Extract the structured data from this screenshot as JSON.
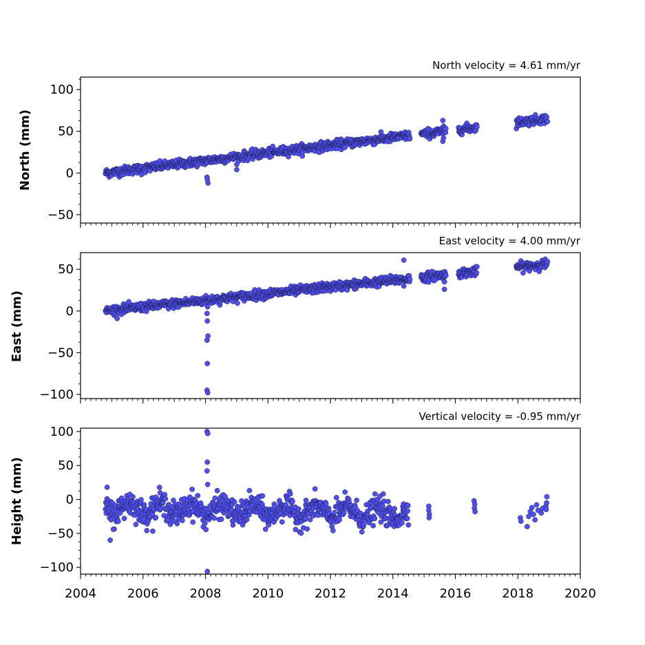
{
  "chart_data": [
    {
      "type": "scatter",
      "title": "North velocity = 4.61 mm/yr",
      "xlabel": "",
      "ylabel": "North (mm)",
      "xlim": [
        2004,
        2020
      ],
      "ylim": [
        -60,
        115
      ],
      "yticks": [
        -50,
        0,
        50,
        100
      ],
      "xticks": [
        2004,
        2006,
        2008,
        2010,
        2012,
        2014,
        2016,
        2018,
        2020
      ],
      "x_tick_labels_visible": false,
      "trend": {
        "slope_mm_per_yr": 4.61,
        "start_year": 2004.8,
        "start_value": 0
      },
      "gaps": [
        [
          2014.55,
          2014.9
        ],
        [
          2015.7,
          2016.1
        ],
        [
          2016.7,
          2017.95
        ]
      ],
      "end_year": 2018.95,
      "segment_offsets": [],
      "outliers": [
        {
          "x": 2008.05,
          "y": -5
        },
        {
          "x": 2008.08,
          "y": -12
        },
        {
          "x": 2008.06,
          "y": -8
        },
        {
          "x": 2009.0,
          "y": 4
        },
        {
          "x": 2005.95,
          "y": -2
        },
        {
          "x": 2015.6,
          "y": 63
        },
        {
          "x": 2015.6,
          "y": 38
        },
        {
          "x": 2015.62,
          "y": 42
        }
      ],
      "series": [
        {
          "values_description_only": false
        }
      ]
    },
    {
      "type": "scatter",
      "title": "East velocity = 4.00 mm/yr",
      "xlabel": "",
      "ylabel": "East (mm)",
      "xlim": [
        2004,
        2020
      ],
      "ylim": [
        -105,
        70
      ],
      "yticks": [
        -100,
        -50,
        0,
        50
      ],
      "xticks": [
        2004,
        2006,
        2008,
        2010,
        2012,
        2014,
        2016,
        2018,
        2020
      ],
      "x_tick_labels_visible": false,
      "trend": {
        "slope_mm_per_yr": 4.0,
        "start_year": 2004.8,
        "start_value": 0
      },
      "gaps": [
        [
          2014.55,
          2014.9
        ],
        [
          2015.7,
          2016.1
        ],
        [
          2016.7,
          2017.95
        ]
      ],
      "end_year": 2018.95,
      "outliers": [
        {
          "x": 2008.05,
          "y": -95
        },
        {
          "x": 2008.07,
          "y": -98
        },
        {
          "x": 2008.06,
          "y": -63
        },
        {
          "x": 2008.05,
          "y": -35
        },
        {
          "x": 2008.08,
          "y": -30
        },
        {
          "x": 2008.06,
          "y": -12
        },
        {
          "x": 2008.05,
          "y": -3
        },
        {
          "x": 2008.07,
          "y": 5
        },
        {
          "x": 2014.35,
          "y": 61
        },
        {
          "x": 2014.35,
          "y": 30
        },
        {
          "x": 2015.65,
          "y": 26
        },
        {
          "x": 2015.65,
          "y": 35
        }
      ]
    },
    {
      "type": "scatter",
      "title": "Vertical velocity = -0.95 mm/yr",
      "xlabel": "",
      "ylabel": "Height (mm)",
      "xlim": [
        2004,
        2020
      ],
      "ylim": [
        -110,
        105
      ],
      "yticks": [
        -100,
        -50,
        0,
        50,
        100
      ],
      "xticks": [
        2004,
        2006,
        2008,
        2010,
        2012,
        2014,
        2016,
        2018,
        2020
      ],
      "x_tick_labels": [
        "2004",
        "2006",
        "2008",
        "2010",
        "2012",
        "2014",
        "2016",
        "2018",
        "2020"
      ],
      "x_tick_labels_visible": true,
      "trend": {
        "slope_mm_per_yr": -0.95,
        "start_year": 2004.8,
        "start_value": -12
      },
      "outliers": [
        {
          "x": 2008.05,
          "y": 100
        },
        {
          "x": 2008.07,
          "y": 97
        },
        {
          "x": 2008.06,
          "y": 55
        },
        {
          "x": 2008.05,
          "y": 42
        },
        {
          "x": 2008.07,
          "y": 22
        },
        {
          "x": 2008.06,
          "y": -106
        },
        {
          "x": 2004.95,
          "y": -60
        },
        {
          "x": 2005.05,
          "y": -44
        },
        {
          "x": 2004.85,
          "y": 18
        }
      ],
      "sparse_points": [
        {
          "x": 2015.15,
          "y": -10
        },
        {
          "x": 2015.15,
          "y": -16
        },
        {
          "x": 2015.17,
          "y": -22
        },
        {
          "x": 2015.16,
          "y": -27
        },
        {
          "x": 2016.6,
          "y": -2
        },
        {
          "x": 2016.62,
          "y": -7
        },
        {
          "x": 2016.61,
          "y": -13
        },
        {
          "x": 2016.63,
          "y": -18
        },
        {
          "x": 2018.08,
          "y": -27
        },
        {
          "x": 2018.1,
          "y": -32
        },
        {
          "x": 2018.3,
          "y": -40
        },
        {
          "x": 2018.35,
          "y": -25
        },
        {
          "x": 2018.4,
          "y": -18
        },
        {
          "x": 2018.45,
          "y": -12
        },
        {
          "x": 2018.5,
          "y": -22
        },
        {
          "x": 2018.55,
          "y": -30
        },
        {
          "x": 2018.6,
          "y": -8
        },
        {
          "x": 2018.65,
          "y": -16
        },
        {
          "x": 2018.75,
          "y": -20
        },
        {
          "x": 2018.8,
          "y": -13
        },
        {
          "x": 2018.9,
          "y": -10
        },
        {
          "x": 2018.92,
          "y": -5
        },
        {
          "x": 2018.93,
          "y": 4
        },
        {
          "x": 2018.91,
          "y": -15
        }
      ]
    }
  ],
  "colors": {
    "marker_fill": "#4f4ff2",
    "marker_edge": "#1a1a40"
  }
}
